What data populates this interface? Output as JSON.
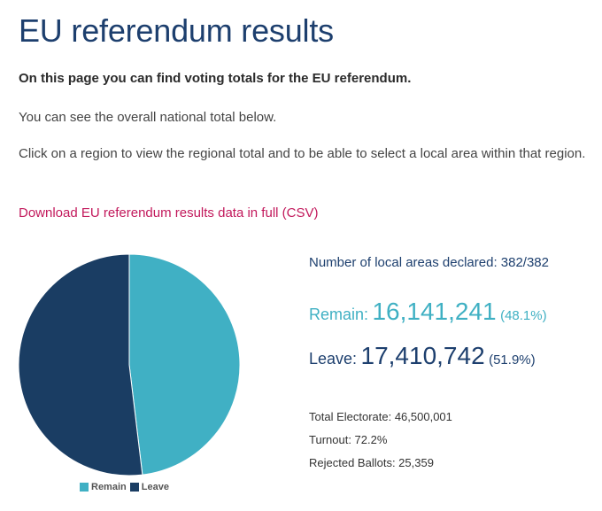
{
  "title": "EU referendum results",
  "intro": {
    "bold": "On this page you can find voting totals for the EU referendum.",
    "paragraph1": "You can see the overall national total below.",
    "paragraph2": "Click on a region to view the regional total and to be able to select a local area within that region."
  },
  "download_link": "Download EU referendum results data in full (CSV)",
  "colors": {
    "remain": "#40b0c4",
    "leave": "#1a3d63",
    "title": "#1d3f6e",
    "link": "#c2185b"
  },
  "chart_data": {
    "type": "pie",
    "slices": [
      {
        "label": "Remain",
        "value": 48.1,
        "color": "#40b0c4"
      },
      {
        "label": "Leave",
        "value": 51.9,
        "color": "#1a3d63"
      }
    ],
    "legend": [
      "Remain",
      "Leave"
    ],
    "legend_position": "bottom"
  },
  "stats": {
    "declared": "Number of local areas declared: 382/382",
    "remain": {
      "label": "Remain:",
      "value": "16,141,241",
      "pct": "(48.1%)"
    },
    "leave": {
      "label": "Leave:",
      "value": "17,410,742",
      "pct": "(51.9%)"
    },
    "electorate": "Total Electorate: 46,500,001",
    "turnout": "Turnout: 72.2%",
    "rejected": "Rejected Ballots: 25,359"
  }
}
